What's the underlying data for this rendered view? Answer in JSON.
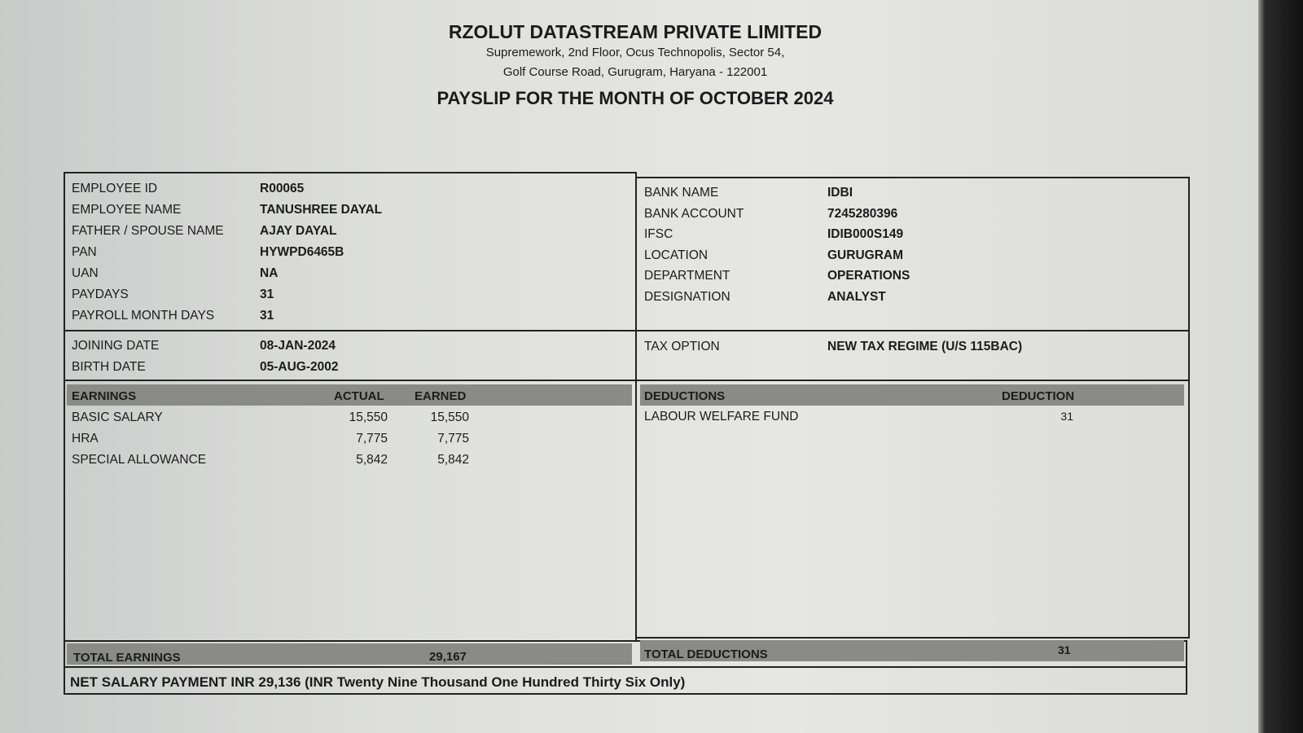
{
  "company": {
    "name": "RZOLUT DATASTREAM PRIVATE LIMITED",
    "address_line1": "Supremework, 2nd Floor, Ocus Technopolis, Sector 54,",
    "address_line2": "Golf Course Road, Gurugram, Haryana - 122001",
    "title": "PAYSLIP FOR THE MONTH OF OCTOBER 2024"
  },
  "employee_left": [
    {
      "label": "EMPLOYEE ID",
      "value": "R00065"
    },
    {
      "label": "EMPLOYEE NAME",
      "value": "TANUSHREE DAYAL"
    },
    {
      "label": "FATHER / SPOUSE NAME",
      "value": "AJAY DAYAL"
    },
    {
      "label": "PAN",
      "value": "HYWPD6465B"
    },
    {
      "label": "UAN",
      "value": "NA"
    },
    {
      "label": "PAYDAYS",
      "value": "31"
    },
    {
      "label": "PAYROLL MONTH DAYS",
      "value": "31"
    }
  ],
  "employee_right": [
    {
      "label": "BANK NAME",
      "value": "IDBI"
    },
    {
      "label": "BANK ACCOUNT",
      "value": "7245280396"
    },
    {
      "label": "IFSC",
      "value": "IDIB000S149"
    },
    {
      "label": "LOCATION",
      "value": "GURUGRAM"
    },
    {
      "label": "DEPARTMENT",
      "value": "OPERATIONS"
    },
    {
      "label": "DESIGNATION",
      "value": "ANALYST"
    }
  ],
  "dates": [
    {
      "label": "JOINING DATE",
      "value": "08-JAN-2024"
    },
    {
      "label": "BIRTH DATE",
      "value": "05-AUG-2002"
    }
  ],
  "tax": {
    "label": "TAX OPTION",
    "value": "NEW TAX REGIME (U/S 115BAC)"
  },
  "earnings": {
    "header": "EARNINGS",
    "col_actual": "ACTUAL",
    "col_earned": "EARNED",
    "rows": [
      {
        "name": "BASIC SALARY",
        "actual": "15,550",
        "earned": "15,550"
      },
      {
        "name": "HRA",
        "actual": "7,775",
        "earned": "7,775"
      },
      {
        "name": "SPECIAL ALLOWANCE",
        "actual": "5,842",
        "earned": "5,842"
      }
    ],
    "total_label": "TOTAL EARNINGS",
    "total": "29,167"
  },
  "deductions": {
    "header": "DEDUCTIONS",
    "col": "DEDUCTION",
    "rows": [
      {
        "name": "LABOUR WELFARE FUND",
        "amount": "31"
      }
    ],
    "total_label": "TOTAL DEDUCTIONS",
    "total": "31"
  },
  "net": "NET SALARY PAYMENT INR 29,136 (INR Twenty Nine Thousand One Hundred Thirty Six Only)"
}
